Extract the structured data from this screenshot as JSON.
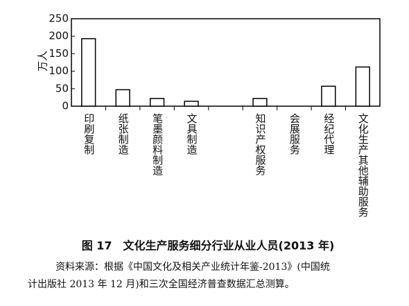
{
  "chart_data": {
    "type": "bar",
    "title": "图 17　文化生产服务细分行业从业人员(2013 年)",
    "note": [
      "资料来源：根据《中国文化及相关产业统计年鉴-2013》(中国统",
      "计出版社 2013 年 12 月)和三次全国经济普查数据汇总测算。"
    ],
    "y_label": "万人",
    "categories": [
      "印刷复制",
      "纸张制造",
      "笔墨颜料制造",
      "文具制造",
      null,
      "知识产权服务",
      "会展服务",
      "经纪代理",
      "文化生产其他辅助服务"
    ],
    "values": [
      193,
      47,
      22,
      14,
      null,
      22,
      0,
      57,
      112
    ],
    "color": "#ffffff",
    "ylim": [
      0,
      250
    ],
    "yticks": [
      0,
      50,
      100,
      150,
      200,
      250
    ],
    "grid": false
  }
}
